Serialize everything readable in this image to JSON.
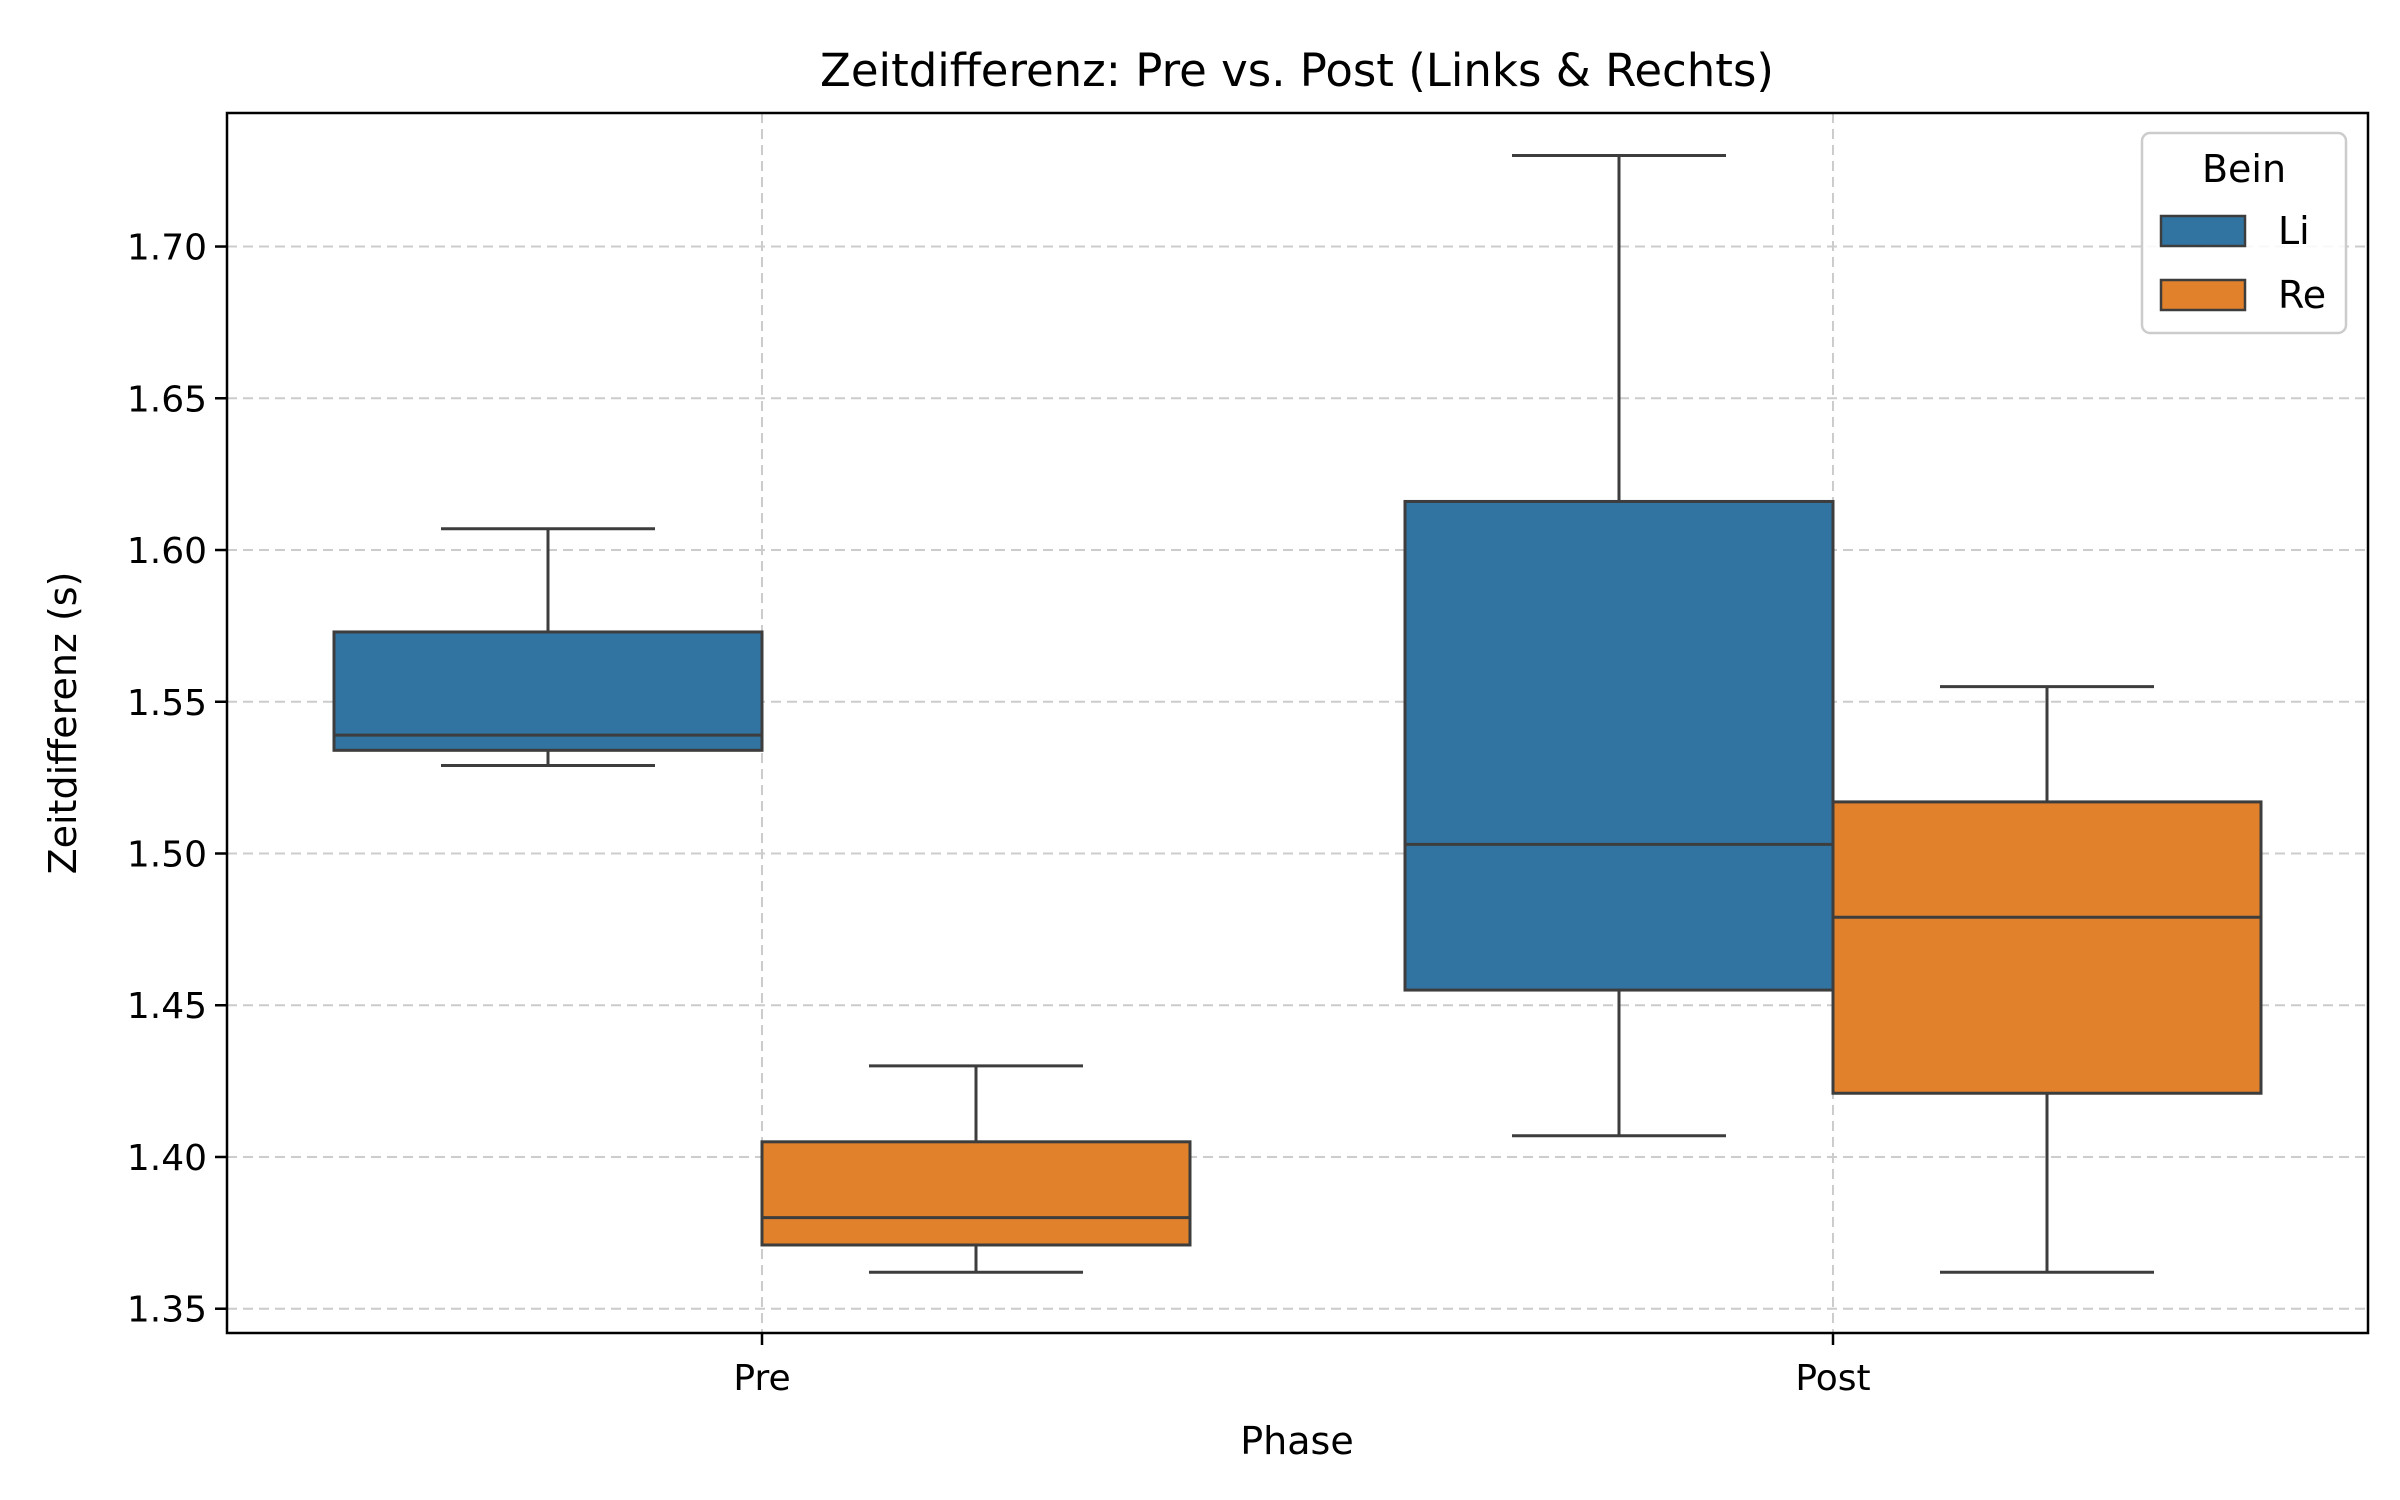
{
  "chart_data": {
    "type": "box",
    "title": "Zeitdifferenz: Pre vs. Post (Links & Rechts)",
    "xlabel": "Phase",
    "ylabel": "Zeitdifferenz (s)",
    "categories": [
      "Pre",
      "Post"
    ],
    "ylim": [
      1.342,
      1.744
    ],
    "yticks": [
      1.35,
      1.4,
      1.45,
      1.5,
      1.55,
      1.6,
      1.65,
      1.7
    ],
    "ytick_labels": [
      "1.35",
      "1.40",
      "1.45",
      "1.50",
      "1.55",
      "1.60",
      "1.65",
      "1.70"
    ],
    "grid": true,
    "legend": {
      "title": "Bein",
      "placement": "top-right"
    },
    "series": [
      {
        "name": "Li",
        "color": "#3274a1",
        "boxes": [
          {
            "category": "Pre",
            "whisker_low": 1.529,
            "q1": 1.534,
            "median": 1.539,
            "q3": 1.573,
            "whisker_high": 1.607
          },
          {
            "category": "Post",
            "whisker_low": 1.407,
            "q1": 1.455,
            "median": 1.503,
            "q3": 1.616,
            "whisker_high": 1.73
          }
        ]
      },
      {
        "name": "Re",
        "color": "#e1812c",
        "boxes": [
          {
            "category": "Pre",
            "whisker_low": 1.362,
            "q1": 1.371,
            "median": 1.38,
            "q3": 1.405,
            "whisker_high": 1.43
          },
          {
            "category": "Post",
            "whisker_low": 1.362,
            "q1": 1.421,
            "median": 1.479,
            "q3": 1.517,
            "whisker_high": 1.555
          }
        ]
      }
    ]
  }
}
